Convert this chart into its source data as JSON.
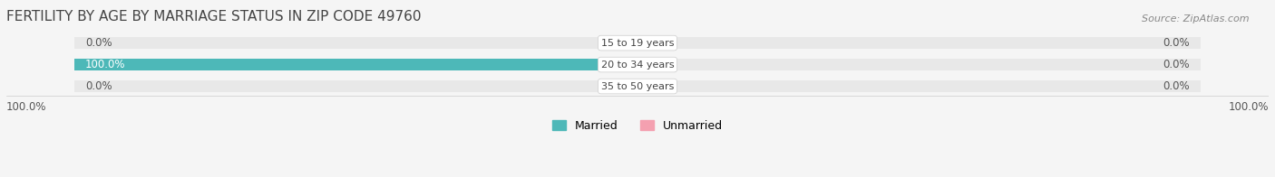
{
  "title": "FERTILITY BY AGE BY MARRIAGE STATUS IN ZIP CODE 49760",
  "source": "Source: ZipAtlas.com",
  "categories": [
    "15 to 19 years",
    "20 to 34 years",
    "35 to 50 years"
  ],
  "married_values": [
    0.0,
    100.0,
    0.0
  ],
  "unmarried_values": [
    0.0,
    0.0,
    0.0
  ],
  "married_color": "#4db8b8",
  "unmarried_color": "#f4a0b0",
  "bar_bg_color": "#e8e8e8",
  "background_color": "#f5f5f5",
  "max_val": 100.0,
  "left_labels": [
    "0.0%",
    "100.0%",
    "0.0%"
  ],
  "right_labels": [
    "0.0%",
    "0.0%",
    "0.0%"
  ],
  "bottom_left": "100.0%",
  "bottom_right": "100.0%",
  "title_fontsize": 11,
  "label_fontsize": 9,
  "source_fontsize": 8
}
